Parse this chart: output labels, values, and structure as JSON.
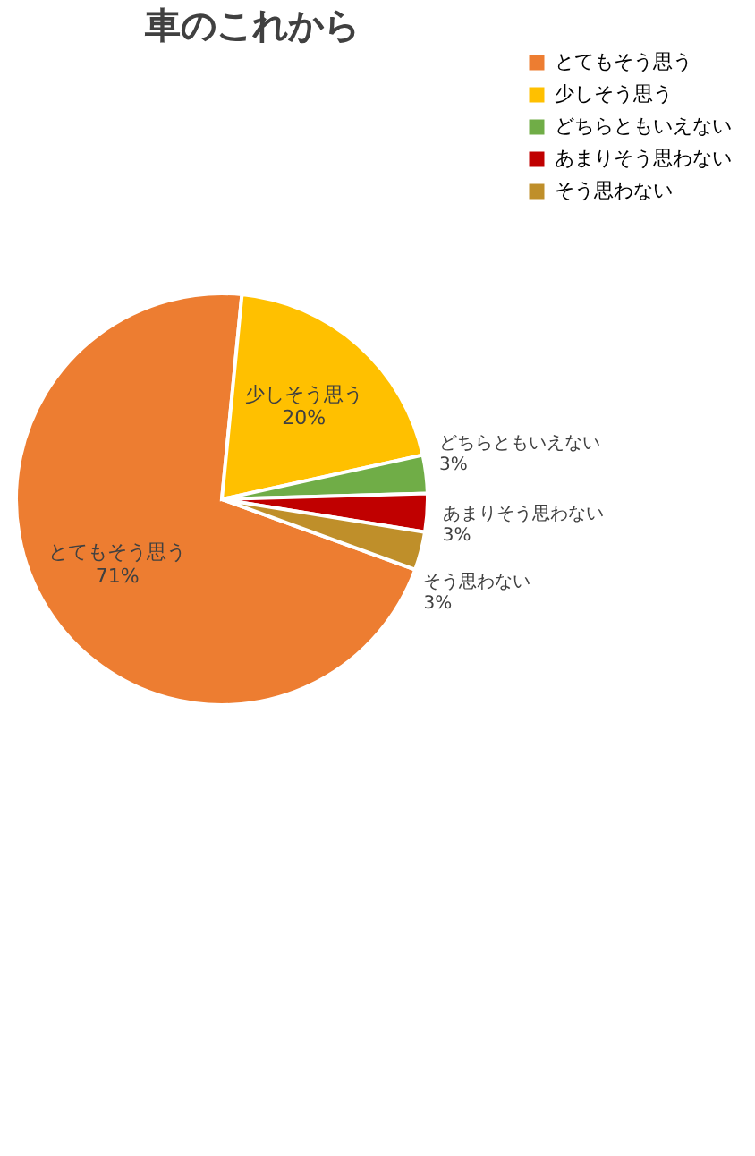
{
  "chart_data": {
    "type": "pie",
    "title": "車のこれから",
    "categories": [
      "とてもそう思う",
      "少しそう思う",
      "どちらともいえない",
      "あまりそう思わない",
      "そう思わない"
    ],
    "values": [
      71,
      20,
      3,
      3,
      3
    ],
    "value_labels": [
      "71%",
      "20%",
      "3%",
      "3%",
      "3%"
    ],
    "colors": [
      "#ed7d31",
      "#ffc000",
      "#70ad47",
      "#c00000",
      "#bf8f2a"
    ],
    "legend": "right"
  }
}
